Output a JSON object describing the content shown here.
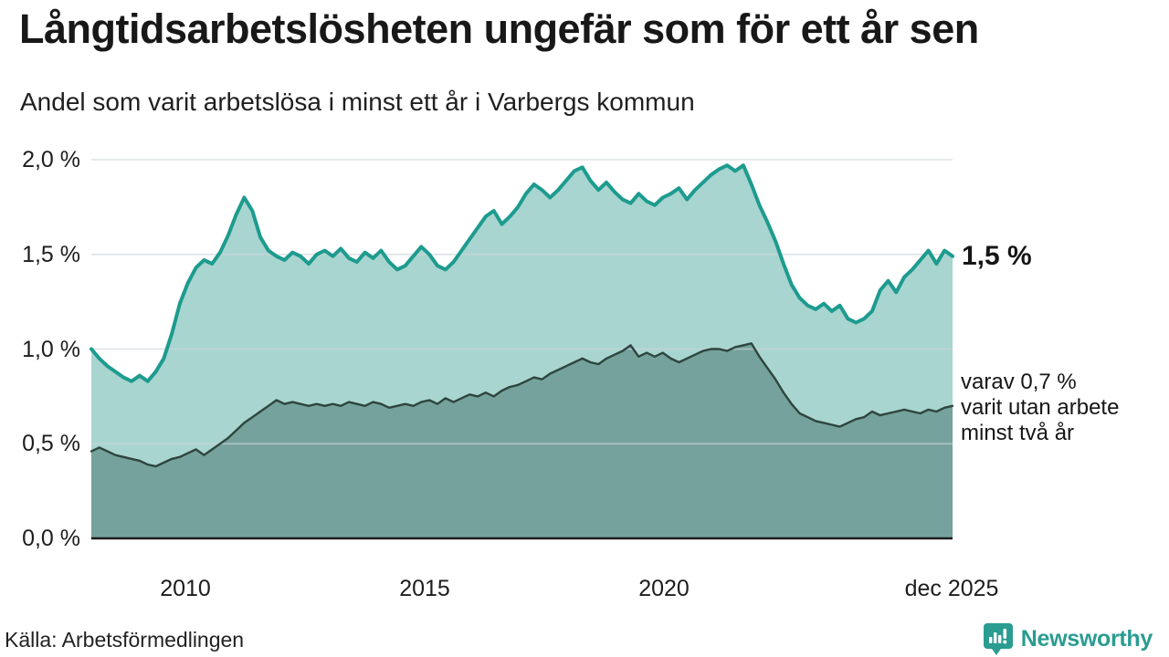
{
  "header": {
    "title": "Långtidsarbetslösheten ungefär som för ett år sen",
    "subtitle": "Andel som varit arbetslösa i minst ett år i Varbergs kommun"
  },
  "chart_data": {
    "type": "area",
    "title": "Långtidsarbetslösheten ungefär som för ett år sen",
    "subtitle": "Andel som varit arbetslösa i minst ett år i Varbergs kommun",
    "unit": "%",
    "x_start": "jan 2008",
    "x_end": "dec 2025",
    "x_step_months": 2,
    "ylim": [
      0.0,
      2.0
    ],
    "grid": true,
    "y_tick_values": [
      2.0,
      1.5,
      1.0,
      0.5,
      0.0
    ],
    "y_ticks": [
      "2,0 %",
      "1,5 %",
      "1,0 %",
      "0,5 %",
      "0,0 %"
    ],
    "x_ticks": [
      {
        "label": "2010",
        "year": 2010
      },
      {
        "label": "2015",
        "year": 2015
      },
      {
        "label": "2020",
        "year": 2020
      },
      {
        "label": "dec 2025",
        "year": 2025.92
      }
    ],
    "series": [
      {
        "name": "Andel arbetslösa minst ett år",
        "line_color": "#1d9b8f",
        "fill_color": "#a8d5cf",
        "end_value": 1.5,
        "values": [
          1.0,
          0.95,
          0.91,
          0.88,
          0.85,
          0.83,
          0.86,
          0.83,
          0.88,
          0.95,
          1.08,
          1.24,
          1.35,
          1.43,
          1.47,
          1.45,
          1.51,
          1.6,
          1.71,
          1.8,
          1.73,
          1.59,
          1.52,
          1.49,
          1.47,
          1.51,
          1.49,
          1.45,
          1.5,
          1.52,
          1.49,
          1.53,
          1.48,
          1.46,
          1.51,
          1.48,
          1.52,
          1.46,
          1.42,
          1.44,
          1.49,
          1.54,
          1.5,
          1.44,
          1.42,
          1.46,
          1.52,
          1.58,
          1.64,
          1.7,
          1.73,
          1.66,
          1.7,
          1.75,
          1.82,
          1.87,
          1.84,
          1.8,
          1.84,
          1.89,
          1.94,
          1.96,
          1.89,
          1.84,
          1.88,
          1.83,
          1.79,
          1.77,
          1.82,
          1.78,
          1.76,
          1.8,
          1.82,
          1.85,
          1.79,
          1.84,
          1.88,
          1.92,
          1.95,
          1.97,
          1.94,
          1.97,
          1.87,
          1.76,
          1.67,
          1.57,
          1.45,
          1.34,
          1.27,
          1.23,
          1.21,
          1.24,
          1.2,
          1.23,
          1.16,
          1.14,
          1.16,
          1.2,
          1.31,
          1.36,
          1.3,
          1.38,
          1.42,
          1.47,
          1.52,
          1.45,
          1.52,
          1.49
        ]
      },
      {
        "name": "Andel arbetslösa minst två år",
        "line_color": "#2f443f",
        "fill_color": "#75a29c",
        "end_value": 0.7,
        "values": [
          0.46,
          0.48,
          0.46,
          0.44,
          0.43,
          0.42,
          0.41,
          0.39,
          0.38,
          0.4,
          0.42,
          0.43,
          0.45,
          0.47,
          0.44,
          0.47,
          0.5,
          0.53,
          0.57,
          0.61,
          0.64,
          0.67,
          0.7,
          0.73,
          0.71,
          0.72,
          0.71,
          0.7,
          0.71,
          0.7,
          0.71,
          0.7,
          0.72,
          0.71,
          0.7,
          0.72,
          0.71,
          0.69,
          0.7,
          0.71,
          0.7,
          0.72,
          0.73,
          0.71,
          0.74,
          0.72,
          0.74,
          0.76,
          0.75,
          0.77,
          0.75,
          0.78,
          0.8,
          0.81,
          0.83,
          0.85,
          0.84,
          0.87,
          0.89,
          0.91,
          0.93,
          0.95,
          0.93,
          0.92,
          0.95,
          0.97,
          0.99,
          1.02,
          0.96,
          0.98,
          0.96,
          0.98,
          0.95,
          0.93,
          0.95,
          0.97,
          0.99,
          1.0,
          1.0,
          0.99,
          1.01,
          1.02,
          1.03,
          0.96,
          0.9,
          0.84,
          0.77,
          0.71,
          0.66,
          0.64,
          0.62,
          0.61,
          0.6,
          0.59,
          0.61,
          0.63,
          0.64,
          0.67,
          0.65,
          0.66,
          0.67,
          0.68,
          0.67,
          0.66,
          0.68,
          0.67,
          0.69,
          0.7
        ]
      }
    ],
    "annotations": {
      "end_label": "1,5 %",
      "sub_lines": [
        "varav 0,7 %",
        "varit utan arbete",
        "minst två år"
      ]
    },
    "colors": {
      "accent_teal": "#1d9b8f",
      "light_fill": "#a8d5cf",
      "dark_fill": "#75a29c",
      "dark_line": "#2f443f",
      "gridline": "#dfe3e6",
      "axis": "#1c1c1c"
    }
  },
  "footer": {
    "source": "Källa: Arbetsförmedlingen",
    "brand": "Newsworthy"
  }
}
